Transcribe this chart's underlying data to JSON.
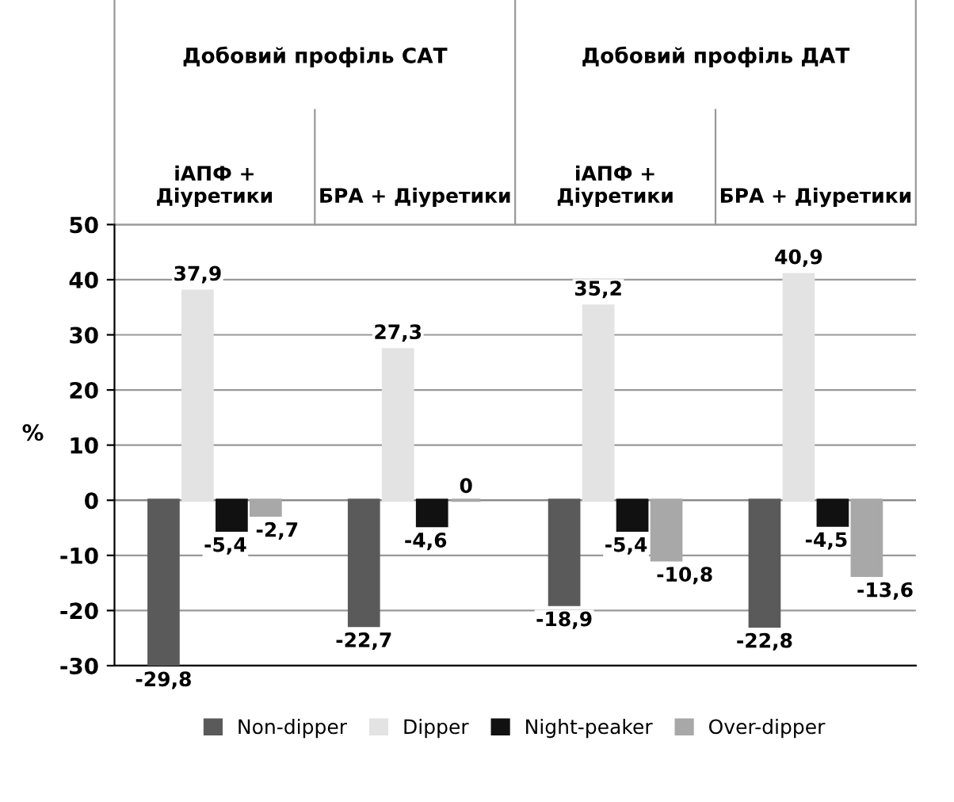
{
  "chart_data": {
    "type": "bar",
    "categories": [
      "іАПФ +\nДіуретики",
      "БРА + Діуретики",
      "іАПФ +\nДіуретики",
      "БРА + Діуретики"
    ],
    "annotations": [
      "Добовий профіль САТ",
      "Добовий профіль ДАТ"
    ],
    "ylabel": "%",
    "series": [
      {
        "name": "Non-dipper",
        "color": "#5a5a5a",
        "values": [
          -29.8,
          -22.7,
          -18.9,
          -22.8
        ],
        "value_labels": [
          "-29,8",
          "-22,7",
          "-18,9",
          "-22,8"
        ]
      },
      {
        "name": "Dipper",
        "color": "#e3e3e3",
        "values": [
          37.9,
          27.3,
          35.2,
          40.9
        ],
        "value_labels": [
          "37,9",
          "27,3",
          "35,2",
          "40,9"
        ]
      },
      {
        "name": "Night-peaker",
        "color": "#111111",
        "values": [
          -5.4,
          -4.6,
          -5.4,
          -4.5
        ],
        "value_labels": [
          "-5,4",
          "-4,6",
          "-5,4",
          "-4,5"
        ]
      },
      {
        "name": "Over-dipper",
        "color": "#a8a8a8",
        "values": [
          -2.7,
          0,
          -10.8,
          -13.6
        ],
        "value_labels": [
          "-2,7",
          "0",
          "-10,8",
          "-13,6"
        ]
      }
    ],
    "ylim": [
      -30,
      50
    ],
    "yticks": [
      -30,
      -20,
      -10,
      0,
      10,
      20,
      30,
      40,
      50
    ],
    "grid": "y",
    "legend": "bottom"
  }
}
